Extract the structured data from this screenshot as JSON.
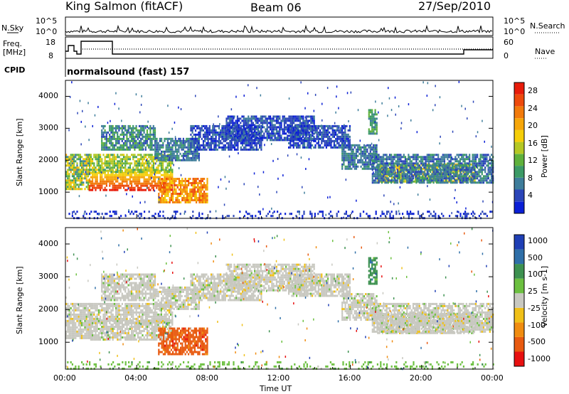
{
  "header": {
    "station": "King Salmon (fitACF)",
    "beam": "Beam 06",
    "date": "27/Sep/2010"
  },
  "summary": {
    "nsky_label": "N.Sky",
    "nsearch_label": "N.Search",
    "freq_label": "Freq.",
    "freq_unit": "[MHz]",
    "nave_label": "Nave",
    "cpid_label": "CPID",
    "cpid_value": "normalsound (fast) 157",
    "noise_ticks_left": [
      "10^5",
      "10^0"
    ],
    "noise_ticks_right": [
      "10^5",
      "10^0"
    ],
    "freq_ticks": [
      "18",
      "8"
    ],
    "nave_ticks": [
      "60",
      "0"
    ]
  },
  "chart_data": [
    {
      "type": "heatmap",
      "name": "power",
      "ylabel": "Slant Range [km]",
      "xlabel": "",
      "ylim": [
        180,
        4500
      ],
      "yticks": [
        1000,
        2000,
        3000,
        4000
      ],
      "xlim_hours": [
        0,
        24
      ],
      "colorbar": {
        "label": "Power [dB]",
        "range": [
          0,
          30
        ],
        "ticks": [
          4,
          8,
          12,
          16,
          20,
          24,
          28
        ],
        "colors": [
          "#0a1fd6",
          "#2b45b8",
          "#3e7d9b",
          "#3c9a66",
          "#5fb13c",
          "#b5c824",
          "#f5ce08",
          "#f6a609",
          "#f27a0b",
          "#ee4a0c",
          "#e81c0a"
        ]
      }
    },
    {
      "type": "heatmap",
      "name": "velocity",
      "ylabel": "Slant Range [km]",
      "xlabel": "Time UT",
      "ylim": [
        180,
        4500
      ],
      "yticks": [
        1000,
        2000,
        3000,
        4000
      ],
      "xlim_hours": [
        0,
        24
      ],
      "xtick_labels": [
        "00:00",
        "04:00",
        "08:00",
        "12:00",
        "16:00",
        "20:00",
        "00:00"
      ],
      "colorbar": {
        "label": "Velocity [m s-1]",
        "ticks": [
          "1000",
          "500",
          "100",
          "25",
          "-25",
          "-100",
          "-500",
          "-1000"
        ],
        "colors": [
          "#1f3fb5",
          "#2f6fa8",
          "#3d9150",
          "#6cc040",
          "#c8c8c0",
          "#f0c018",
          "#f08c10",
          "#e85a10",
          "#e81010"
        ]
      }
    }
  ]
}
